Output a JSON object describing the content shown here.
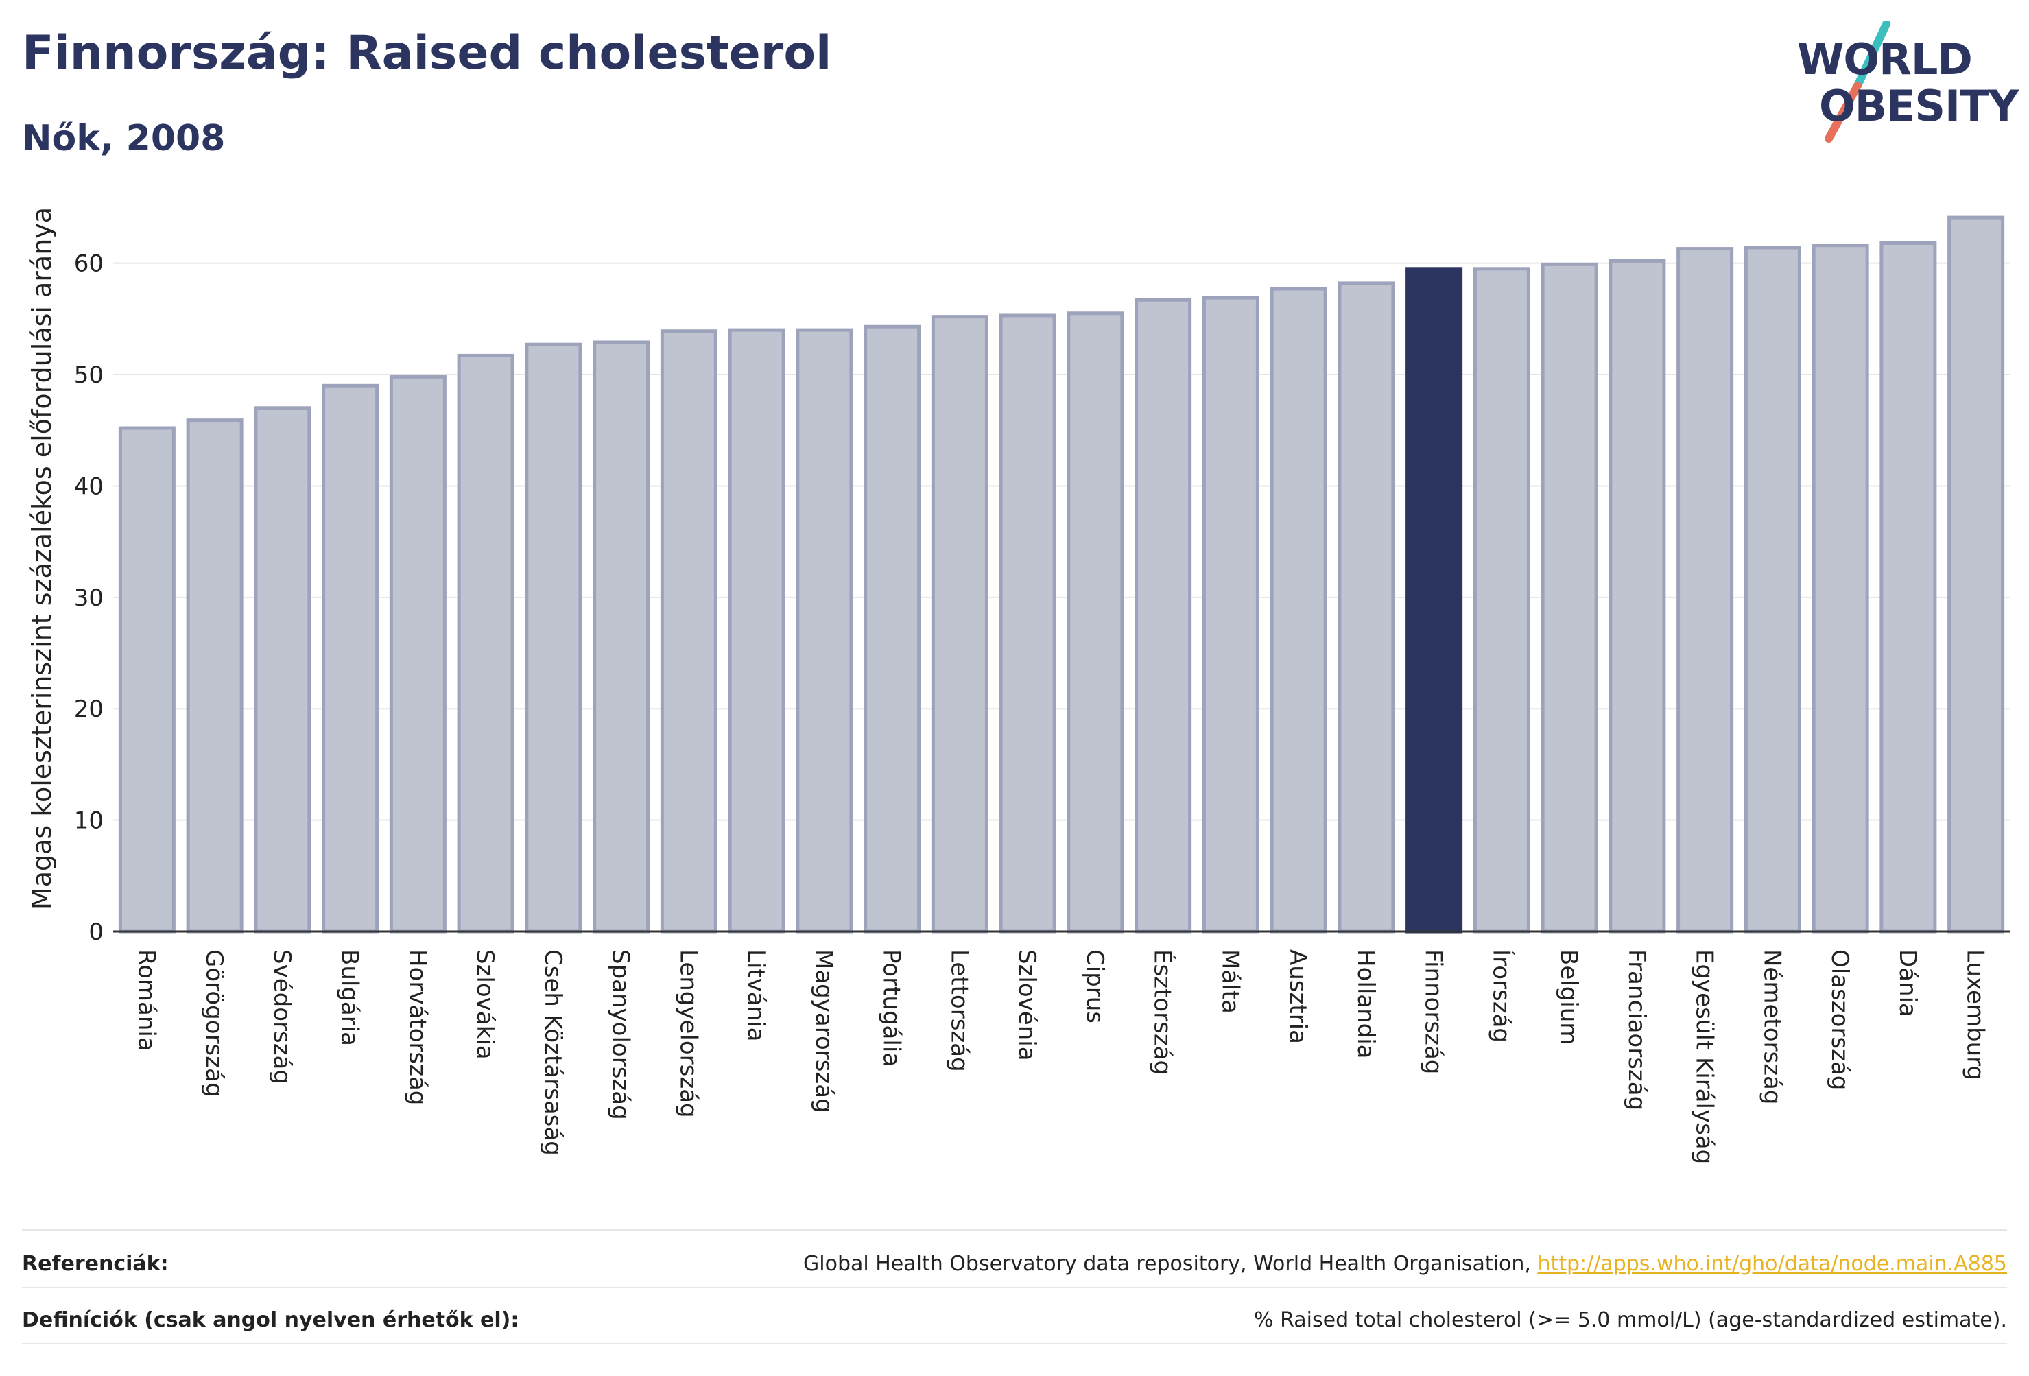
{
  "header": {
    "title": "Finnország: Raised cholesterol",
    "subtitle": "Nők, 2008"
  },
  "logo": {
    "line1": "WORLD",
    "line2": "OBESITY",
    "accent_teal": "#3bbfbf",
    "accent_coral": "#e8705a"
  },
  "chart_data": {
    "type": "bar",
    "ylabel": "Magas koleszterinszint százalékos előfordulási aránya",
    "xlabel": "",
    "ylim": [
      0,
      67
    ],
    "yticks": [
      0,
      10,
      20,
      30,
      40,
      50,
      60
    ],
    "highlight": "Finnország",
    "colors": {
      "bar": "#c0c3d0",
      "bar_edge": "#9ea3bc",
      "highlight": "#2b3560",
      "grid": "#e5e5e5"
    },
    "categories": [
      "Románia",
      "Görögország",
      "Svédország",
      "Bulgária",
      "Horvátország",
      "Szlovákia",
      "Cseh Köztársaság",
      "Spanyolország",
      "Lengyelország",
      "Litvánia",
      "Magyarország",
      "Portugália",
      "Lettország",
      "Szlovénia",
      "Ciprus",
      "Észtország",
      "Málta",
      "Ausztria",
      "Hollandia",
      "Finnország",
      "Írország",
      "Belgium",
      "Franciaország",
      "Egyesült Királyság",
      "Németország",
      "Olaszország",
      "Dánia",
      "Luxemburg"
    ],
    "values": [
      45.2,
      45.9,
      47.0,
      49.0,
      49.8,
      51.7,
      52.7,
      52.9,
      53.9,
      54.0,
      54.0,
      54.3,
      55.2,
      55.3,
      55.5,
      56.7,
      56.9,
      57.7,
      58.2,
      59.5,
      59.5,
      59.9,
      60.2,
      61.3,
      61.4,
      61.6,
      61.8,
      64.1
    ]
  },
  "footer": {
    "references_label": "Referenciák:",
    "references_text": "Global Health Observatory data repository, World Health Organisation, ",
    "references_link": "http://apps.who.int/gho/data/node.main.A885",
    "definitions_label": "Definíciók (csak angol nyelven érhetők el):",
    "definitions_text": "% Raised total cholesterol (>= 5.0 mmol/L) (age-standardized estimate)."
  }
}
